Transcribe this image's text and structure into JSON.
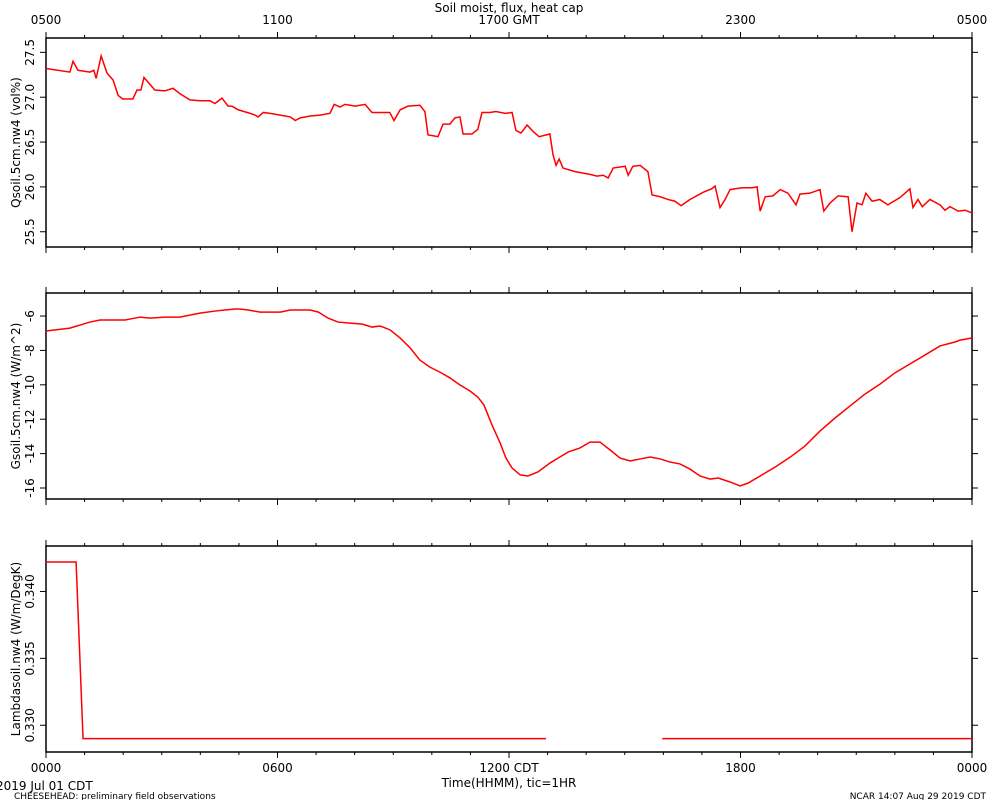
{
  "title": "Soil moist, flux, heat cap",
  "date_label": "2019 Jul 01 CDT",
  "footer_left": "CHEESEHEAD: preliminary field observations",
  "footer_right": "NCAR 14:07 Aug 29 2019 CDT",
  "chart_data": [
    {
      "type": "line",
      "ylabel": "Qsoil.5cm.nw4 (vol%)",
      "color": "#ff0000",
      "xlim": [
        0,
        24
      ],
      "xticks": [
        0,
        6,
        12,
        18,
        24
      ],
      "x2ticks": [
        {
          "value": 0,
          "label": "0500"
        },
        {
          "value": 6,
          "label": "1100"
        },
        {
          "value": 12,
          "label": "1700 GMT"
        },
        {
          "value": 18,
          "label": "2300"
        },
        {
          "value": 24,
          "label": "0500"
        }
      ],
      "ylim": [
        25.33,
        27.66
      ],
      "yticks": [
        25.5,
        {
          "value": 26,
          "label": "26.0"
        },
        26.5,
        {
          "value": 27,
          "label": "27.0"
        },
        27.5
      ],
      "x": [
        0,
        0.62,
        0.7,
        0.83,
        1.14,
        1.24,
        1.3,
        1.43,
        1.58,
        1.74,
        1.87,
        1.99,
        2.25,
        2.36,
        2.46,
        2.54,
        2.7,
        2.82,
        3.08,
        3.29,
        3.47,
        3.73,
        3.99,
        4.25,
        4.38,
        4.56,
        4.72,
        4.82,
        4.98,
        5.29,
        5.42,
        5.5,
        5.63,
        5.81,
        6.07,
        6.33,
        6.46,
        6.59,
        6.85,
        7.1,
        7.36,
        7.47,
        7.62,
        7.75,
        8.01,
        8.27,
        8.45,
        8.91,
        9.02,
        9.18,
        9.38,
        9.69,
        9.82,
        9.9,
        10.16,
        10.29,
        10.47,
        10.6,
        10.73,
        10.81,
        11.04,
        11.19,
        11.3,
        11.5,
        11.66,
        11.9,
        12.08,
        12.18,
        12.31,
        12.47,
        12.62,
        12.78,
        13.06,
        13.14,
        13.22,
        13.3,
        13.4,
        13.71,
        14.1,
        14.28,
        14.44,
        14.57,
        14.7,
        15.01,
        15.09,
        15.21,
        15.4,
        15.6,
        15.71,
        15.92,
        16.12,
        16.3,
        16.46,
        16.69,
        17.03,
        17.26,
        17.34,
        17.47,
        17.6,
        17.73,
        18.04,
        18.3,
        18.43,
        18.51,
        18.64,
        18.84,
        19.03,
        19.23,
        19.44,
        19.54,
        19.8,
        20.06,
        20.16,
        20.32,
        20.53,
        20.79,
        20.89,
        21.02,
        21.15,
        21.25,
        21.41,
        21.61,
        21.82,
        22.13,
        22.29,
        22.39,
        22.47,
        22.6,
        22.71,
        22.91,
        23.17,
        23.3,
        23.43,
        23.64,
        23.82,
        24
      ],
      "values": [
        27.32,
        27.28,
        27.4,
        27.3,
        27.28,
        27.3,
        27.21,
        27.46,
        27.27,
        27.19,
        27.02,
        26.98,
        26.98,
        27.08,
        27.08,
        27.22,
        27.14,
        27.08,
        27.07,
        27.1,
        27.04,
        26.97,
        26.96,
        26.96,
        26.93,
        26.99,
        26.9,
        26.9,
        26.86,
        26.82,
        26.8,
        26.78,
        26.83,
        26.82,
        26.8,
        26.78,
        26.74,
        26.77,
        26.79,
        26.8,
        26.82,
        26.92,
        26.89,
        26.92,
        26.9,
        26.92,
        26.83,
        26.83,
        26.74,
        26.86,
        26.9,
        26.91,
        26.84,
        26.58,
        26.56,
        26.7,
        26.7,
        26.77,
        26.78,
        26.59,
        26.59,
        26.64,
        26.83,
        26.83,
        26.84,
        26.82,
        26.83,
        26.63,
        26.6,
        26.69,
        26.62,
        26.56,
        26.59,
        26.36,
        26.24,
        26.31,
        26.21,
        26.17,
        26.14,
        26.12,
        26.13,
        26.1,
        26.21,
        26.23,
        26.13,
        26.23,
        26.24,
        26.17,
        25.91,
        25.89,
        25.86,
        25.84,
        25.79,
        25.86,
        25.94,
        25.98,
        26.01,
        25.77,
        25.86,
        25.97,
        25.99,
        25.99,
        26.0,
        25.73,
        25.89,
        25.9,
        25.97,
        25.93,
        25.8,
        25.92,
        25.93,
        25.97,
        25.73,
        25.82,
        25.9,
        25.89,
        25.5,
        25.82,
        25.8,
        25.93,
        25.84,
        25.86,
        25.8,
        25.88,
        25.94,
        25.98,
        25.77,
        25.86,
        25.78,
        25.86,
        25.8,
        25.74,
        25.78,
        25.73,
        25.74,
        25.71
      ]
    },
    {
      "type": "line",
      "ylabel": "Gsoil.5cm.nw4 (W/m^2)",
      "color": "#ff0000",
      "xlim": [
        0,
        24
      ],
      "xticks": [
        0,
        6,
        12,
        18,
        24
      ],
      "ylim": [
        -16.64,
        -4.66
      ],
      "yticks": [
        -16,
        -14,
        -12,
        -10,
        -8,
        -6
      ],
      "x": [
        0,
        0.62,
        1.14,
        1.4,
        2.05,
        2.44,
        2.7,
        3.08,
        3.47,
        3.99,
        4.38,
        4.64,
        4.9,
        5.03,
        5.24,
        5.55,
        6.07,
        6.33,
        6.85,
        7.06,
        7.31,
        7.57,
        7.88,
        8.2,
        8.45,
        8.66,
        8.92,
        9.18,
        9.44,
        9.69,
        9.95,
        10.21,
        10.47,
        10.73,
        10.99,
        11.19,
        11.35,
        11.56,
        11.77,
        11.92,
        12.08,
        12.29,
        12.49,
        12.75,
        13.06,
        13.32,
        13.53,
        13.84,
        14.1,
        14.36,
        14.62,
        14.88,
        15.14,
        15.4,
        15.66,
        15.92,
        16.17,
        16.43,
        16.69,
        16.95,
        17.21,
        17.42,
        17.73,
        17.99,
        18.2,
        18.51,
        18.9,
        19.29,
        19.67,
        20.06,
        20.45,
        20.84,
        21.23,
        21.62,
        22.0,
        22.39,
        22.78,
        23.17,
        23.56,
        23.69,
        24
      ],
      "values": [
        -6.87,
        -6.7,
        -6.35,
        -6.23,
        -6.23,
        -6.06,
        -6.12,
        -6.06,
        -6.06,
        -5.83,
        -5.71,
        -5.65,
        -5.59,
        -5.59,
        -5.65,
        -5.77,
        -5.77,
        -5.65,
        -5.65,
        -5.77,
        -6.12,
        -6.35,
        -6.41,
        -6.47,
        -6.64,
        -6.58,
        -6.81,
        -7.28,
        -7.86,
        -8.56,
        -8.97,
        -9.26,
        -9.6,
        -10.01,
        -10.36,
        -10.71,
        -11.17,
        -12.34,
        -13.38,
        -14.26,
        -14.84,
        -15.24,
        -15.3,
        -15.07,
        -14.55,
        -14.2,
        -13.91,
        -13.67,
        -13.33,
        -13.33,
        -13.79,
        -14.26,
        -14.43,
        -14.31,
        -14.2,
        -14.31,
        -14.49,
        -14.6,
        -14.9,
        -15.3,
        -15.48,
        -15.42,
        -15.65,
        -15.88,
        -15.71,
        -15.3,
        -14.78,
        -14.2,
        -13.56,
        -12.69,
        -11.93,
        -11.23,
        -10.53,
        -9.95,
        -9.31,
        -8.79,
        -8.27,
        -7.74,
        -7.51,
        -7.4,
        -7.28
      ]
    },
    {
      "type": "line",
      "ylabel": "Lambdasoil.nw4 (W/m/DegK)",
      "color": "#ff0000",
      "xlabel": "Time(HHMM), tic=1HR",
      "xlim": [
        0,
        24
      ],
      "xticks": [
        {
          "value": 0,
          "label": "0000"
        },
        {
          "value": 6,
          "label": "0600"
        },
        {
          "value": 12,
          "label": "1200 CDT"
        },
        {
          "value": 18,
          "label": "1800"
        },
        {
          "value": 24,
          "label": "0000"
        }
      ],
      "ylim": [
        0.328,
        0.3434
      ],
      "yticks": [
        {
          "value": 0.33,
          "label": "0.330"
        },
        0.335,
        {
          "value": 0.34,
          "label": "0.340"
        }
      ],
      "x": [
        0,
        0.78,
        0.96,
        12.96,
        14.5,
        15.97,
        24
      ],
      "values": [
        0.3422,
        0.3422,
        0.329,
        0.329,
        null,
        0.329,
        0.329
      ]
    }
  ]
}
